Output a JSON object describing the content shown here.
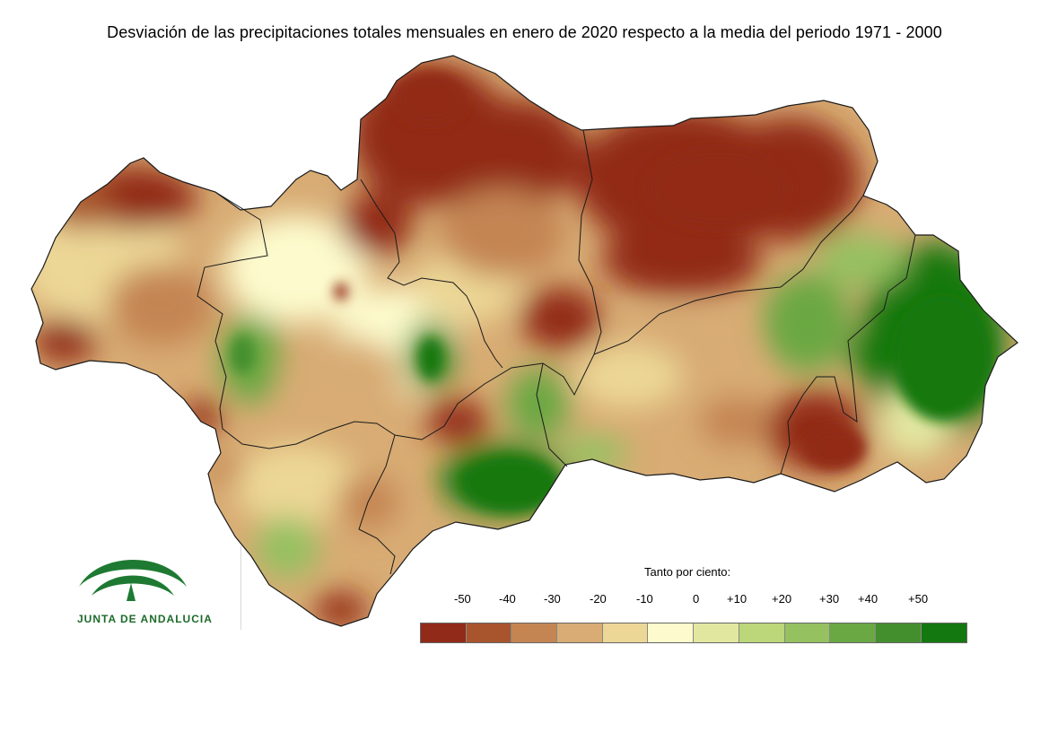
{
  "title": "Desviación de las precipitaciones totales mensuales en enero de 2020 respecto a la media del periodo 1971 - 2000",
  "legend": {
    "title": "Tanto por ciento:",
    "labels": [
      "-50",
      "-40",
      "-30",
      "-20",
      "-10",
      "0",
      "+10",
      "+20",
      "+30",
      "+40",
      "+50"
    ],
    "colors": [
      "#922a19",
      "#a8542c",
      "#c48552",
      "#d8ac74",
      "#ecd796",
      "#fdfbcd",
      "#e2e7a0",
      "#bcd67a",
      "#95c160",
      "#6aa843",
      "#448f2d",
      "#13780f"
    ]
  },
  "logo": {
    "text": "JUNTA DE ANDALUCIA",
    "icon": "junta-andalucia-emblem-icon"
  }
}
